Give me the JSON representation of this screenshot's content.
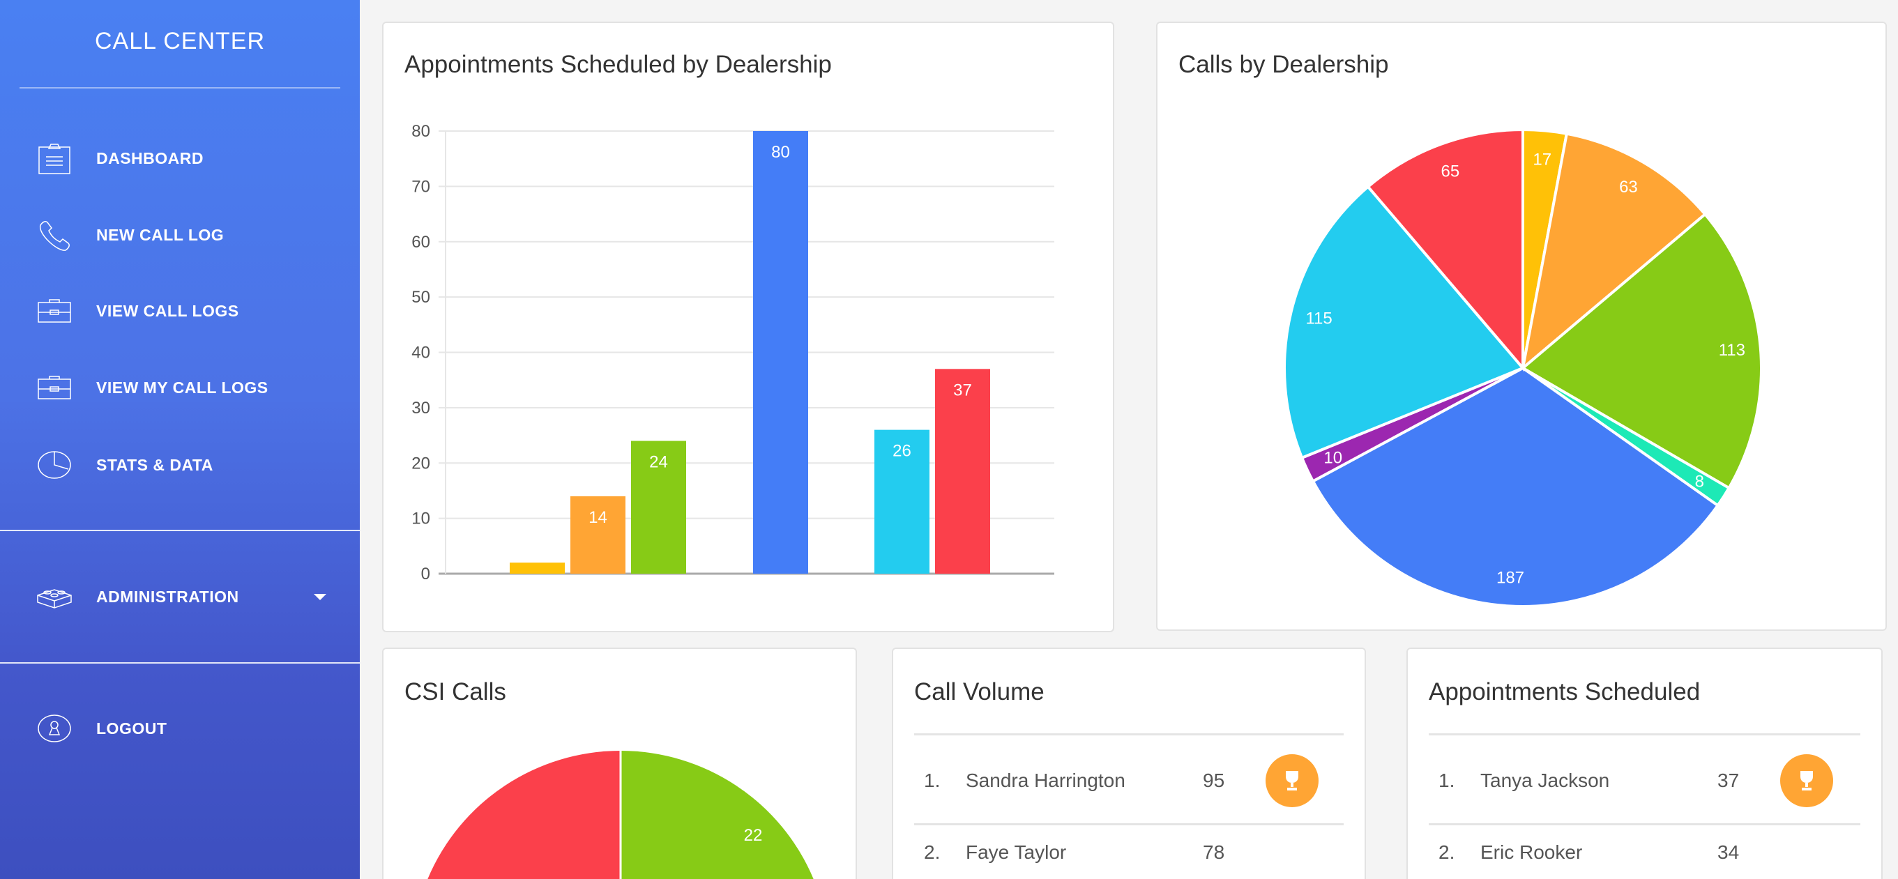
{
  "sidebar": {
    "title": "CALL CENTER",
    "items": [
      {
        "label": "DASHBOARD",
        "icon": "clipboard-icon"
      },
      {
        "label": "NEW CALL LOG",
        "icon": "phone-icon"
      },
      {
        "label": "VIEW CALL LOGS",
        "icon": "briefcase-icon"
      },
      {
        "label": "VIEW MY CALL LOGS",
        "icon": "briefcase-icon"
      },
      {
        "label": "STATS & DATA",
        "icon": "pie-chart-icon"
      }
    ],
    "admin": {
      "label": "ADMINISTRATION",
      "icon": "blocks-icon"
    },
    "logout": {
      "label": "LOGOUT",
      "icon": "keyhole-icon"
    }
  },
  "chart_data": [
    {
      "type": "bar",
      "title": "Appointments Scheduled by Dealership",
      "xlabel": "",
      "ylabel": "",
      "ylim": [
        0,
        80
      ],
      "yticks": [
        0,
        10,
        20,
        30,
        40,
        50,
        60,
        70,
        80
      ],
      "grid": true,
      "values": [
        2,
        14,
        24,
        80,
        26,
        37
      ],
      "labels": [
        "",
        "14",
        "24",
        "80",
        "26",
        "37"
      ],
      "colors": [
        "#ffc107",
        "#ffa534",
        "#87cb16",
        "#447df7",
        "#23ccef",
        "#fb404b"
      ]
    },
    {
      "type": "pie",
      "title": "Calls by Dealership",
      "values": [
        17,
        63,
        113,
        8,
        187,
        10,
        115,
        65
      ],
      "colors": [
        "#ffc107",
        "#ffa534",
        "#87cb16",
        "#1de9b6",
        "#447df7",
        "#9c27b0",
        "#23ccef",
        "#fb404b"
      ]
    },
    {
      "type": "pie",
      "title": "CSI Calls",
      "values": [
        22,
        22
      ],
      "labels": [
        "22",
        ""
      ],
      "colors": [
        "#87cb16",
        "#fb404b"
      ]
    }
  ],
  "call_volume": {
    "title": "Call Volume",
    "rows": [
      {
        "rank": "1.",
        "name": "Sandra Harrington",
        "value": "95",
        "trophy": true
      },
      {
        "rank": "2.",
        "name": "Faye Taylor",
        "value": "78"
      }
    ]
  },
  "appointments": {
    "title": "Appointments Scheduled",
    "rows": [
      {
        "rank": "1.",
        "name": "Tanya Jackson",
        "value": "37",
        "trophy": true
      },
      {
        "rank": "2.",
        "name": "Eric Rooker",
        "value": "34"
      }
    ]
  }
}
